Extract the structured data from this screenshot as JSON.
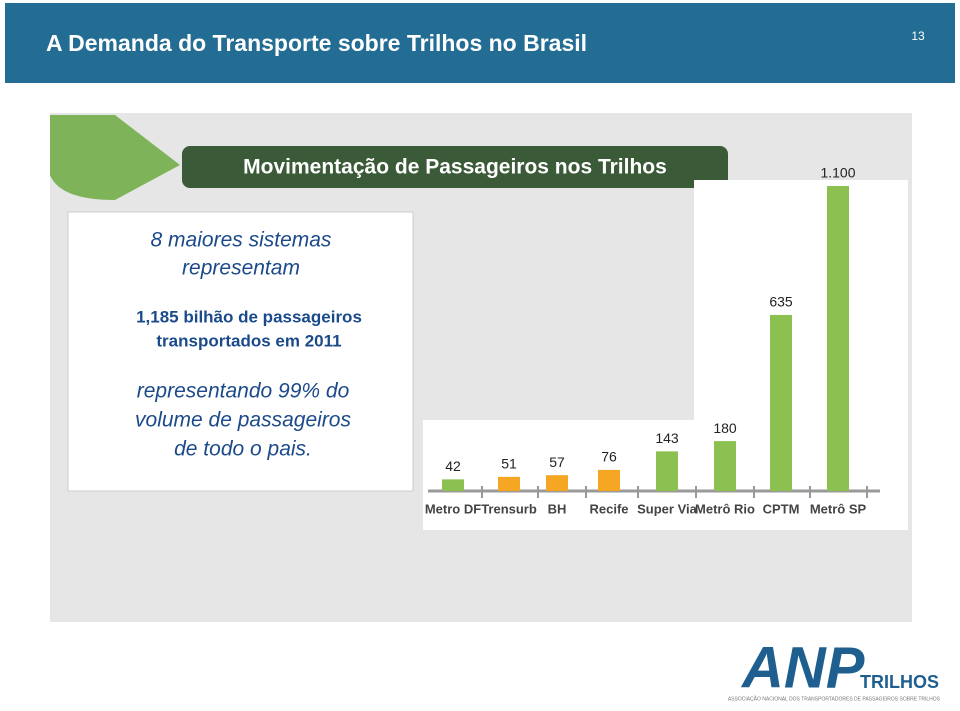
{
  "header": {
    "title": "A Demanda do Transporte sobre Trilhos no Brasil",
    "page_number": "13"
  },
  "text_box": {
    "lines_1": [
      "8 maiores sistemas",
      "representam"
    ],
    "lines_2": [
      "1,185 bilhão de passageiros",
      "transportados em 2011"
    ],
    "lines_3": [
      "representando 99% do",
      "volume de passageiros",
      "de todo o pais."
    ]
  },
  "chart_data": {
    "type": "bar",
    "title": "Movimentação de Passageiros nos Trilhos",
    "categories": [
      "Metro DF",
      "Trensurb",
      "BH",
      "Recife",
      "Super Via",
      "Metrô Rio",
      "CPTM",
      "Metrô SP"
    ],
    "values": [
      42,
      51,
      57,
      76,
      143,
      180,
      635,
      1100
    ],
    "value_labels": [
      "42",
      "51",
      "57",
      "76",
      "143",
      "180",
      "635",
      "1.100"
    ],
    "colors": [
      "#8cc152",
      "#f5a623",
      "#f5a623",
      "#f5a623",
      "#8cc152",
      "#8cc152",
      "#8cc152",
      "#8cc152"
    ]
  },
  "logo": {
    "name": "ANP",
    "sub": "TRILHOS",
    "caption": "ASSOCIAÇÃO NACIONAL DOS TRANSPORTADORES DE PASSAGEIROS SOBRE TRILHOS"
  }
}
